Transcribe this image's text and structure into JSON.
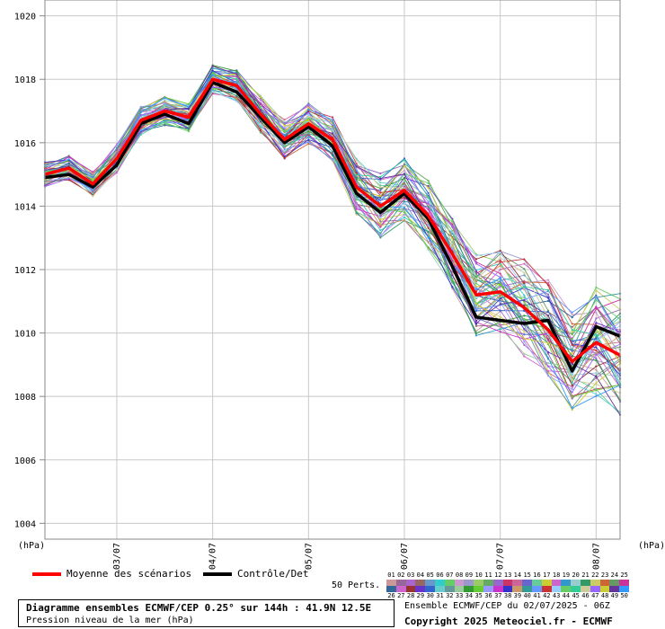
{
  "chart_data": {
    "type": "line",
    "title": "Diagramme ensembles ECMWF/CEP 0.25° sur 144h : 41.9N 12.5E",
    "subtitle": "Pression niveau de la mer (hPa)",
    "ylabel": "(hPa)",
    "xlabel_right": "(hPa)",
    "ylim": [
      1003.5,
      1020.5
    ],
    "yticks": [
      1004,
      1006,
      1008,
      1010,
      1012,
      1014,
      1016,
      1018,
      1020
    ],
    "xlim": [
      0,
      24
    ],
    "x_tick_labels": [
      {
        "x": 3,
        "label": "03/07"
      },
      {
        "x": 7,
        "label": "04/07"
      },
      {
        "x": 11,
        "label": "05/07"
      },
      {
        "x": 15,
        "label": "06/07"
      },
      {
        "x": 19,
        "label": "07/07"
      },
      {
        "x": 23,
        "label": "08/07"
      }
    ],
    "x_steps": [
      0,
      1,
      2,
      3,
      4,
      5,
      6,
      7,
      8,
      9,
      10,
      11,
      12,
      13,
      14,
      15,
      16,
      17,
      18,
      19,
      20,
      21,
      22,
      23,
      24
    ],
    "grid": true,
    "series": [
      {
        "name": "Moyenne des scénarios",
        "color": "#ff0000",
        "values": [
          1015.0,
          1015.2,
          1014.7,
          1015.5,
          1016.7,
          1017.0,
          1016.8,
          1018.0,
          1017.8,
          1016.9,
          1016.1,
          1016.6,
          1016.1,
          1014.6,
          1014.0,
          1014.5,
          1013.7,
          1012.5,
          1011.2,
          1011.3,
          1010.8,
          1010.1,
          1009.1,
          1009.7,
          1009.3
        ]
      },
      {
        "name": "Contrôle/Det",
        "color": "#000000",
        "values": [
          1014.9,
          1015.0,
          1014.6,
          1015.3,
          1016.6,
          1016.9,
          1016.6,
          1017.9,
          1017.6,
          1016.8,
          1016.0,
          1016.5,
          1015.9,
          1014.4,
          1013.8,
          1014.4,
          1013.6,
          1012.1,
          1010.5,
          1010.4,
          1010.3,
          1010.4,
          1008.8,
          1010.2,
          1009.9
        ]
      }
    ],
    "perturbation_count": 50,
    "perturbation_spread": [
      0.3,
      0.3,
      0.3,
      0.35,
      0.35,
      0.35,
      0.35,
      0.35,
      0.4,
      0.45,
      0.5,
      0.5,
      0.55,
      0.7,
      0.8,
      0.8,
      0.85,
      0.9,
      1.0,
      1.1,
      1.2,
      1.3,
      1.2,
      1.4,
      1.5
    ],
    "perturbation_colors": [
      "#cc9999",
      "#996699",
      "#aa66cc",
      "#996666",
      "#6699cc",
      "#33cccc",
      "#66cc66",
      "#cc99cc",
      "#9999cc",
      "#99cc66",
      "#66aa66",
      "#9966cc",
      "#cc3366",
      "#cc6699",
      "#6666cc",
      "#66cc99",
      "#cccc33",
      "#cc66cc",
      "#3399cc",
      "#99cccc",
      "#339966",
      "#cccc66",
      "#cc6633",
      "#669966",
      "#cc3399",
      "#336699",
      "#cc66cc",
      "#993333",
      "#6633cc",
      "#3366cc",
      "#66cccc",
      "#669999",
      "#99cc99",
      "#339933",
      "#66cc33",
      "#9999ff",
      "#cc33cc",
      "#3333cc",
      "#cc9966",
      "#339999",
      "#6699ff",
      "#cc3333",
      "#99ccff",
      "#66cc66",
      "#33cc99",
      "#cccc99",
      "#9966ff",
      "#cccc33",
      "#663399",
      "#3399ff"
    ]
  },
  "legend": {
    "mean_label": "Moyenne des scénarios",
    "control_label": "Contrôle/Det",
    "mean_color": "#ff0000",
    "control_color": "#000000"
  },
  "members": {
    "label": "50 Perts.",
    "row1": [
      "01",
      "02",
      "03",
      "04",
      "05",
      "06",
      "07",
      "08",
      "09",
      "10",
      "11",
      "12",
      "13",
      "14",
      "15",
      "16",
      "17",
      "18",
      "19",
      "20",
      "21",
      "22",
      "23",
      "24",
      "25"
    ],
    "row2": [
      "26",
      "27",
      "28",
      "29",
      "30",
      "31",
      "32",
      "33",
      "34",
      "35",
      "36",
      "37",
      "38",
      "39",
      "40",
      "41",
      "42",
      "43",
      "44",
      "45",
      "46",
      "47",
      "48",
      "49",
      "50"
    ]
  },
  "footer": {
    "title": "Diagramme ensembles ECMWF/CEP 0.25° sur 144h : 41.9N 12.5E",
    "subtitle": "Pression niveau de la mer (hPa)",
    "run": "Ensemble ECMWF/CEP du 02/07/2025 - 06Z",
    "copyright": "Copyright 2025 Meteociel.fr - ECMWF"
  }
}
